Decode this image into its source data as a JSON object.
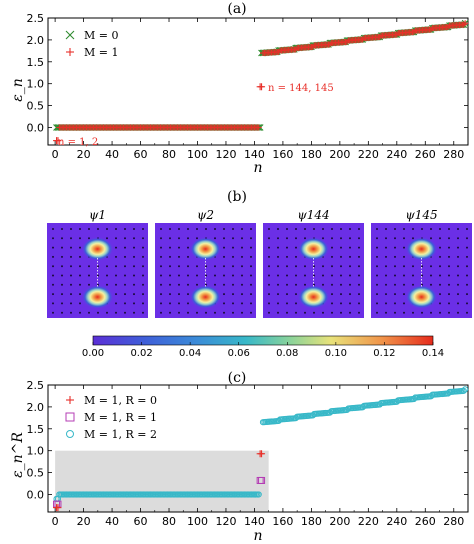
{
  "chart_data": [
    {
      "panel": "(a)",
      "type": "scatter",
      "xlabel": "n",
      "ylabel": "ε_n",
      "xlim": [
        -5,
        290
      ],
      "ylim": [
        -0.4,
        2.5
      ],
      "xticks": [
        "0",
        "20",
        "40",
        "60",
        "80",
        "100",
        "120",
        "140",
        "160",
        "180",
        "200",
        "220",
        "240",
        "260",
        "280"
      ],
      "yticks": [
        "0.0",
        "0.5",
        "1.0",
        "1.5",
        "2.0",
        "2.5"
      ],
      "legend": {
        "position": "upper-left",
        "entries": [
          "M = 0",
          "M = 1"
        ]
      },
      "series": [
        {
          "name": "M = 0",
          "marker": "x",
          "color": "#2e8b2e",
          "segments": [
            {
              "n_range": [
                1,
                144
              ],
              "value": 0.0
            },
            {
              "n_range": [
                145,
                288
              ],
              "values_from": 1.7,
              "values_to": 2.38
            }
          ]
        },
        {
          "name": "M = 1",
          "marker": "+",
          "color": "#e8302a",
          "points": [
            {
              "n": 1,
              "value": -0.3
            },
            {
              "n": 2,
              "value": -0.3
            },
            {
              "n": 144,
              "value": 0.93
            },
            {
              "n": 145,
              "value": 0.93
            }
          ],
          "segments": [
            {
              "n_range": [
                3,
                143
              ],
              "value": 0.0
            },
            {
              "n_range": [
                146,
                288
              ],
              "values_from": 1.7,
              "values_to": 2.38
            }
          ]
        }
      ],
      "annotations": [
        "n = 1, 2",
        "n = 144, 145"
      ]
    },
    {
      "panel": "(b)",
      "type": "heatmap",
      "titles": [
        "ψ1",
        "ψ2",
        "ψ144",
        "ψ145"
      ],
      "colorbar": {
        "ticks": [
          "0.00",
          "0.02",
          "0.04",
          "0.06",
          "0.08",
          "0.10",
          "0.12",
          "0.14"
        ],
        "range": [
          0.0,
          0.14
        ]
      },
      "hotspots": [
        {
          "row": "upper",
          "value": 0.14
        },
        {
          "row": "lower",
          "value": 0.14
        }
      ]
    },
    {
      "panel": "(c)",
      "type": "scatter",
      "xlabel": "n",
      "ylabel": "ε_n^R",
      "xlim": [
        -5,
        290
      ],
      "ylim": [
        -0.4,
        2.5
      ],
      "xticks": [
        "0",
        "20",
        "40",
        "60",
        "80",
        "100",
        "120",
        "140",
        "160",
        "180",
        "200",
        "220",
        "240",
        "260",
        "280"
      ],
      "yticks": [
        "0.0",
        "0.5",
        "1.0",
        "1.5",
        "2.0",
        "2.5"
      ],
      "shaded_region": {
        "n_range": [
          0,
          150
        ],
        "value_range": [
          -0.4,
          1.0
        ],
        "color": "#dcdcdc"
      },
      "legend": {
        "position": "upper-left",
        "entries": [
          "M = 1, R = 0",
          "M = 1, R = 1",
          "M = 1, R = 2"
        ]
      },
      "series": [
        {
          "name": "M = 1, R = 0",
          "marker": "+",
          "color": "#e8302a",
          "points": [
            {
              "n": 1,
              "value": -0.3
            },
            {
              "n": 2,
              "value": -0.3
            },
            {
              "n": 144,
              "value": 0.93
            },
            {
              "n": 145,
              "value": 0.93
            }
          ]
        },
        {
          "name": "M = 1, R = 1",
          "marker": "square",
          "color": "#b43cb4",
          "points": [
            {
              "n": 1,
              "value": -0.22
            },
            {
              "n": 2,
              "value": -0.22
            },
            {
              "n": 144,
              "value": 0.32
            },
            {
              "n": 145,
              "value": 0.32
            }
          ]
        },
        {
          "name": "M = 1, R = 2",
          "marker": "circle",
          "color": "#38b8c8",
          "segments": [
            {
              "n_range": [
                3,
                143
              ],
              "value": 0.0
            },
            {
              "n_range": [
                146,
                288
              ],
              "values_from": 1.65,
              "values_to": 2.4
            }
          ],
          "points": [
            {
              "n": 1,
              "value": -0.1
            },
            {
              "n": 2,
              "value": -0.1
            }
          ]
        }
      ]
    }
  ]
}
